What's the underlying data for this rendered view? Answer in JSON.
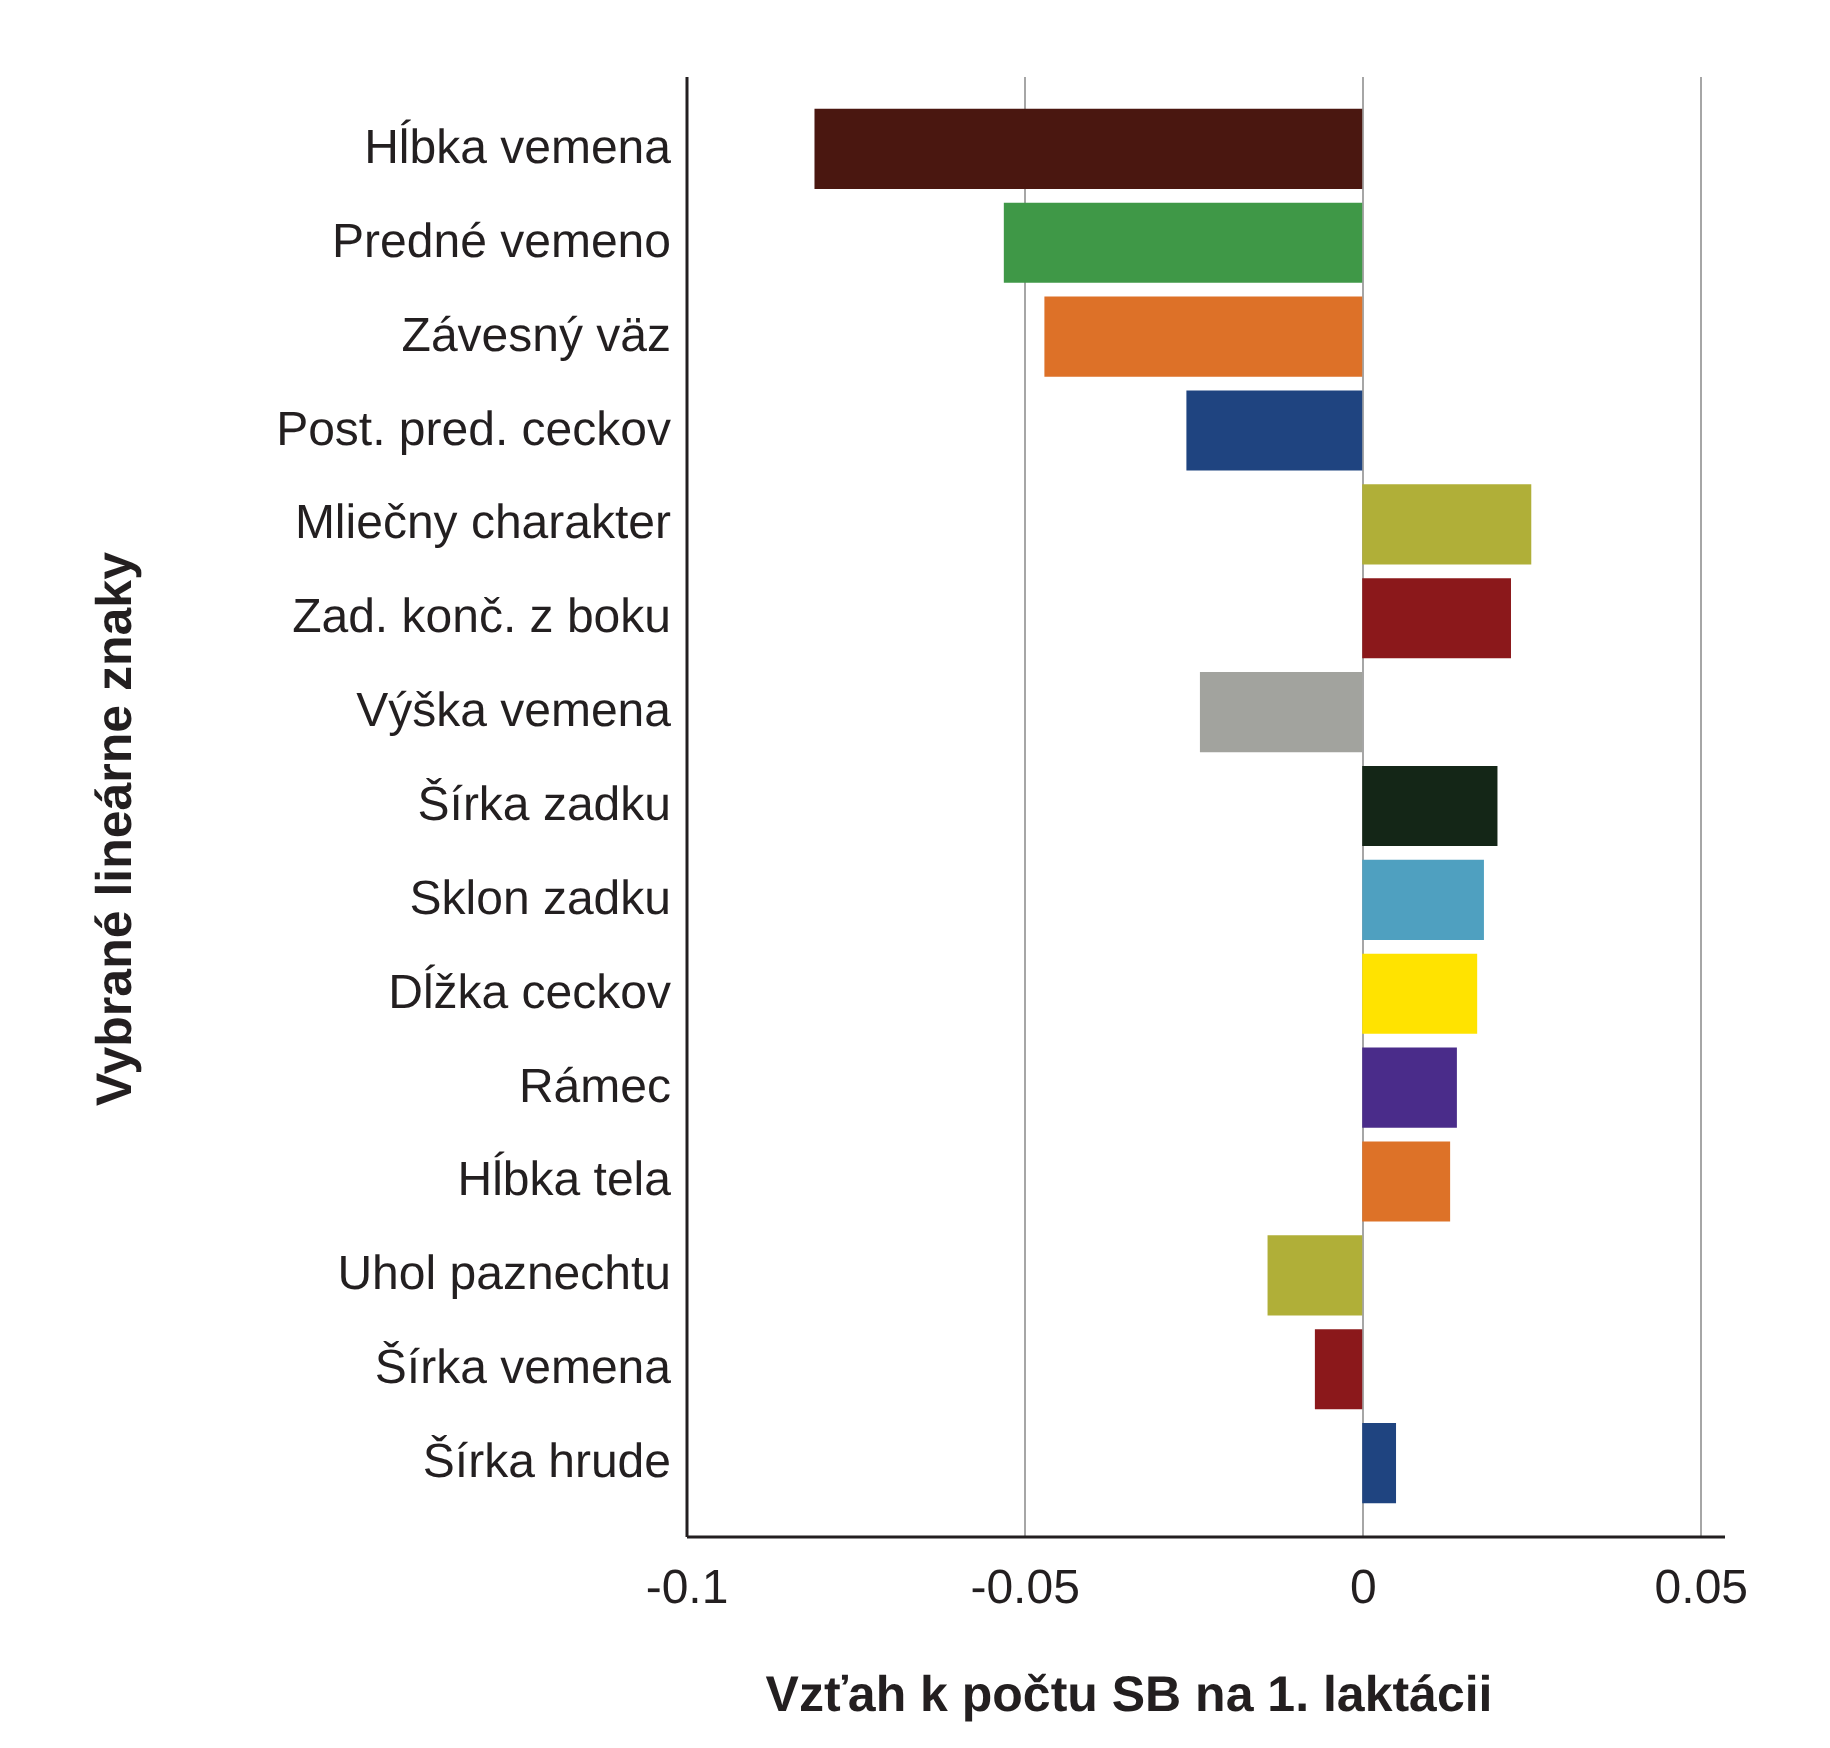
{
  "chart_data": {
    "type": "bar",
    "orientation": "horizontal",
    "xlabel": "Vzťah k počtu SB na 1. laktácii",
    "ylabel": "Vybrané lineárne znaky",
    "categories": [
      "Hĺbka vemena",
      "Predné vemeno",
      "Závesný väz",
      "Post. pred. ceckov",
      "Mliečny charakter",
      "Zad. konč. z boku",
      "Výška vemena",
      "Šírka zadku",
      "Sklon zadku",
      "Dĺžka ceckov",
      "Rámec",
      "Hĺbka tela",
      "Uhol paznechtu",
      "Šírka vemena",
      "Šírka hrude"
    ],
    "values": [
      -0.081,
      -0.053,
      -0.047,
      -0.026,
      0.025,
      0.022,
      -0.024,
      0.02,
      0.018,
      0.017,
      0.014,
      0.013,
      -0.014,
      -0.007,
      0.005
    ],
    "colors": [
      "#4a1710",
      "#3f9847",
      "#dd7128",
      "#1f4480",
      "#b0af38",
      "#8b181b",
      "#a2a39e",
      "#142617",
      "#4fa0c0",
      "#ffe300",
      "#4a2c8a",
      "#dd7228",
      "#b0af38",
      "#8b181b",
      "#1f4480"
    ],
    "xlim": [
      -0.1,
      0.0535
    ],
    "xticks": [
      -0.1,
      -0.05,
      0,
      0.05
    ],
    "grid": "x"
  }
}
